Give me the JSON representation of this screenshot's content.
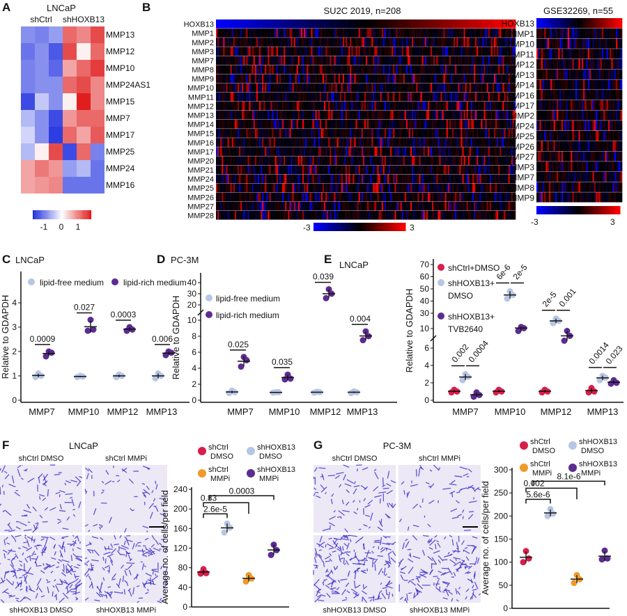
{
  "colors": {
    "heat_low": "#1f2fe0",
    "heat_mid": "#ffffff",
    "heat_high": "#e01e1e",
    "su2c_low": "#0000ff",
    "su2c_mid": "#000000",
    "su2c_high": "#ff0000",
    "lipid_free": "#b7c6e4",
    "lipid_rich": "#5b2c91",
    "shctrl": "#d81e4a",
    "shhoxb13": "#b7c6e4",
    "mmpi_ctrl": "#ef9a2a",
    "mmpi_hox": "#5b2c91",
    "stain": "#3a2fc8"
  },
  "panelA": {
    "letter": "A",
    "title": "LNCaP",
    "groups": [
      "shCtrl",
      "shHOXB13"
    ],
    "genes": [
      "MMP13",
      "MMP12",
      "MMP10",
      "MMP24AS1",
      "MMP15",
      "MMP7",
      "MMP17",
      "MMP25",
      "MMP24",
      "MMP16"
    ],
    "values": [
      [
        -0.8,
        -0.9,
        -0.7,
        1.0,
        0.8,
        1.2
      ],
      [
        -1.0,
        -0.8,
        -1.2,
        1.2,
        0.1,
        1.0
      ],
      [
        -0.9,
        -0.8,
        -1.1,
        0.6,
        1.0,
        1.3
      ],
      [
        -0.9,
        -0.8,
        -0.8,
        1.0,
        1.2,
        0.8
      ],
      [
        -1.3,
        -0.4,
        -0.8,
        0.1,
        1.5,
        0.8
      ],
      [
        -0.5,
        -0.8,
        -1.3,
        0.7,
        1.0,
        1.0
      ],
      [
        -0.3,
        -0.8,
        -1.4,
        1.0,
        0.6,
        1.1
      ],
      [
        -0.5,
        0.1,
        1.2,
        -1.3,
        1.0,
        -0.9
      ],
      [
        0.6,
        0.9,
        0.7,
        -0.7,
        -0.5,
        -1.0
      ],
      [
        0.6,
        0.7,
        0.8,
        -1.0,
        -1.0,
        -1.0
      ]
    ],
    "scale_ticks": [
      "-1",
      "0",
      "1"
    ]
  },
  "panelB": {
    "letter": "B",
    "su2c": {
      "title": "SU2C 2019,  n=208",
      "genes": [
        "HOXB13",
        "MMP1",
        "MMP2",
        "MMP3",
        "MMP7",
        "MMP8",
        "MMP9",
        "MMP10",
        "MMP11",
        "MMP12",
        "MMP13",
        "MMP14",
        "MMP15",
        "MMP16",
        "MMP17",
        "MMP20",
        "MMP21",
        "MMP24",
        "MMP25",
        "MMP26",
        "MMP27",
        "MMP28"
      ],
      "scale_min": "-3",
      "scale_max": "3"
    },
    "gse": {
      "title": "GSE32269,  n=55",
      "genes": [
        "HOXB13",
        "MMP1",
        "MMP10",
        "MMP11",
        "MMP12",
        "MMP13",
        "MMP14",
        "MMP16",
        "MMP17",
        "MMP2",
        "MMP24",
        "MMP25",
        "MMP26",
        "MMP27",
        "MMP3",
        "MMP7",
        "MMP8",
        "MMP9"
      ],
      "scale_min": "-3",
      "scale_max": "3"
    }
  },
  "chart_data": [
    {
      "panel": "C",
      "type": "scatter",
      "title": "LNCaP",
      "ylabel": "Relative to GDAPDH",
      "categories": [
        "MMP7",
        "MMP10",
        "MMP12",
        "MMP13"
      ],
      "yticks": [
        0,
        1,
        2,
        3,
        4
      ],
      "ylim": [
        0,
        4.5
      ],
      "series": [
        {
          "name": "lipid-free medium",
          "points": [
            [
              0.95,
              1.0,
              1.1
            ],
            [
              0.95,
              0.97,
              1.0
            ],
            [
              0.95,
              1.0,
              1.05
            ],
            [
              0.9,
              1.0,
              1.1
            ]
          ]
        },
        {
          "name": "lipid-rich medium",
          "points": [
            [
              1.8,
              1.95,
              2.0
            ],
            [
              2.85,
              2.9,
              3.3
            ],
            [
              2.85,
              2.9,
              3.0
            ],
            [
              1.85,
              1.95,
              2.0
            ]
          ]
        }
      ],
      "pvalues": [
        "0.0009",
        "0.027",
        "0.0003",
        "0.006"
      ]
    },
    {
      "panel": "D",
      "type": "scatter",
      "title": "PC-3M",
      "ylabel": "Relative to GDAPDH",
      "categories": [
        "MMP7",
        "MMP10",
        "MMP12",
        "MMP13"
      ],
      "yticks": [
        0,
        2,
        4,
        6,
        8,
        10,
        20,
        30,
        40
      ],
      "axis_break": [
        10,
        20
      ],
      "series": [
        {
          "name": "lipid-free medium",
          "points": [
            [
              0.9,
              1.0,
              1.2
            ],
            [
              0.95,
              1.0,
              1.0
            ],
            [
              0.95,
              1.0,
              1.05
            ],
            [
              0.9,
              1.0,
              1.1
            ]
          ]
        },
        {
          "name": "lipid-rich medium",
          "points": [
            [
              4.2,
              5.0,
              5.4
            ],
            [
              2.6,
              2.7,
              3.2
            ],
            [
              26,
              30,
              34
            ],
            [
              7.5,
              8.0,
              8.6
            ]
          ]
        }
      ],
      "pvalues": [
        "0.025",
        "0.035",
        "0.039",
        "0.004"
      ]
    },
    {
      "panel": "E",
      "type": "scatter",
      "title": "LNCaP",
      "ylabel": "Relative to GDAPDH",
      "categories": [
        "MMP7",
        "MMP10",
        "MMP12",
        "MMP13"
      ],
      "yticks": [
        0,
        2,
        4,
        6,
        10,
        30,
        40,
        50,
        60,
        70
      ],
      "axis_break": [
        6,
        10
      ],
      "series": [
        {
          "name": "shCtrl+DMSO",
          "label_lines": [
            "shCtrl+DMSO"
          ],
          "points": [
            [
              0.9,
              1.0,
              1.2
            ],
            [
              0.9,
              1.0,
              1.2
            ],
            [
              0.9,
              1.0,
              1.2
            ],
            [
              0.9,
              1.0,
              1.4
            ]
          ]
        },
        {
          "name": "shHOXB13+ DMSO",
          "label_lines": [
            "shHOXB13+",
            "DMSO"
          ],
          "points": [
            [
              2.3,
              2.7,
              3.0
            ],
            [
              42,
              45,
              48
            ],
            [
              17,
              20,
              23
            ],
            [
              2.3,
              2.6,
              2.8
            ]
          ]
        },
        {
          "name": "shHOXB13+ TVB2640",
          "label_lines": [
            "shHOXB13+",
            "TVB2640"
          ],
          "points": [
            [
              0.4,
              0.6,
              0.9
            ],
            [
              9.5,
              10.5,
              12
            ],
            [
              7.5,
              8.5,
              9.5
            ],
            [
              1.9,
              2.0,
              2.3
            ]
          ]
        }
      ],
      "pvalues": [
        [
          "0.002",
          "0.0004"
        ],
        [
          "6e-6",
          "2e-5"
        ],
        [
          "2e-5",
          "0.001"
        ],
        [
          "0.0014",
          "0.023"
        ]
      ]
    },
    {
      "panel": "F",
      "type": "scatter",
      "title": "LNCaP",
      "ylabel": "Average no. of cells/per field",
      "yticks": [
        0,
        40,
        80,
        120,
        160,
        200,
        240
      ],
      "ylim": [
        0,
        240
      ],
      "groups": [
        {
          "name": "shCtrl DMSO",
          "label_lines": [
            "shCtrl",
            "DMSO"
          ],
          "points": [
            68,
            69,
            77
          ]
        },
        {
          "name": "shHOXB13 DMSO",
          "label_lines": [
            "shHOXB13",
            "DMSO"
          ],
          "points": [
            152,
            162,
            170
          ]
        },
        {
          "name": "shCtrl MMPi",
          "label_lines": [
            "shCtrl",
            "MMPi"
          ],
          "points": [
            52,
            58,
            65
          ]
        },
        {
          "name": "shHOXB13 MMPi",
          "label_lines": [
            "shHOXB13",
            "MMPi"
          ],
          "points": [
            106,
            116,
            127
          ]
        }
      ],
      "comparisons": [
        {
          "pair": [
            0,
            1
          ],
          "p": "2.6e-5"
        },
        {
          "pair": [
            0,
            2
          ],
          "p": "0.83"
        },
        {
          "pair": [
            1,
            3
          ],
          "p": "0.0003"
        }
      ],
      "images": [
        "shCtrl DMSO",
        "shCtrl MMPi",
        "shHOXB13 DMSO",
        "shHOXB13 MMPi"
      ]
    },
    {
      "panel": "G",
      "type": "scatter",
      "title": "PC-3M",
      "ylabel": "Average no. of cells/per field",
      "yticks": [
        0,
        50,
        100,
        150,
        200,
        250,
        300
      ],
      "ylim": [
        0,
        300
      ],
      "groups": [
        {
          "name": "shCtrl DMSO",
          "label_lines": [
            "shCtrl",
            "DMSO"
          ],
          "points": [
            100,
            108,
            124
          ]
        },
        {
          "name": "shHOXB13 DMSO",
          "label_lines": [
            "shHOXB13",
            "DMSO"
          ],
          "points": [
            200,
            205,
            215
          ]
        },
        {
          "name": "shCtrl MMPi",
          "label_lines": [
            "shCtrl",
            "MMPi"
          ],
          "points": [
            55,
            63,
            72
          ]
        },
        {
          "name": "shHOXB13 MMPi",
          "label_lines": [
            "shHOXB13",
            "MMPi"
          ],
          "points": [
            106,
            108,
            125
          ]
        }
      ],
      "comparisons": [
        {
          "pair": [
            0,
            1
          ],
          "p": "5.6e-6"
        },
        {
          "pair": [
            0,
            2
          ],
          "p": "0.002"
        },
        {
          "pair": [
            1,
            3
          ],
          "p": "8.1e-6"
        }
      ],
      "images": [
        "shCtrl DMSO",
        "shCtrl MMPi",
        "shHOXB13 DMSO",
        "shHOXB13 MMPi"
      ]
    }
  ]
}
